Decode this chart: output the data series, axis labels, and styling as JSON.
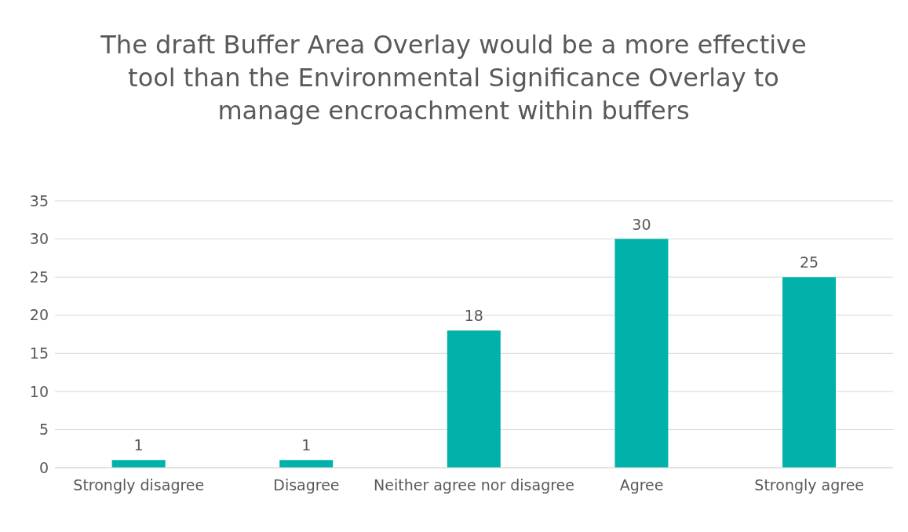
{
  "chart_data": {
    "type": "bar",
    "title": "The draft Buffer Area Overlay would be a more effective tool than the Environmental Significance Overlay to manage encroachment within buffers",
    "categories": [
      "Strongly disagree",
      "Disagree",
      "Neither agree nor disagree",
      "Agree",
      "Strongly agree"
    ],
    "values": [
      1,
      1,
      18,
      30,
      25
    ],
    "color": "#00b2a9",
    "ylim": [
      0,
      35
    ],
    "yticks": [
      0,
      5,
      10,
      15,
      20,
      25,
      30,
      35
    ],
    "grid": "y",
    "data_labels": true,
    "legend": false
  }
}
